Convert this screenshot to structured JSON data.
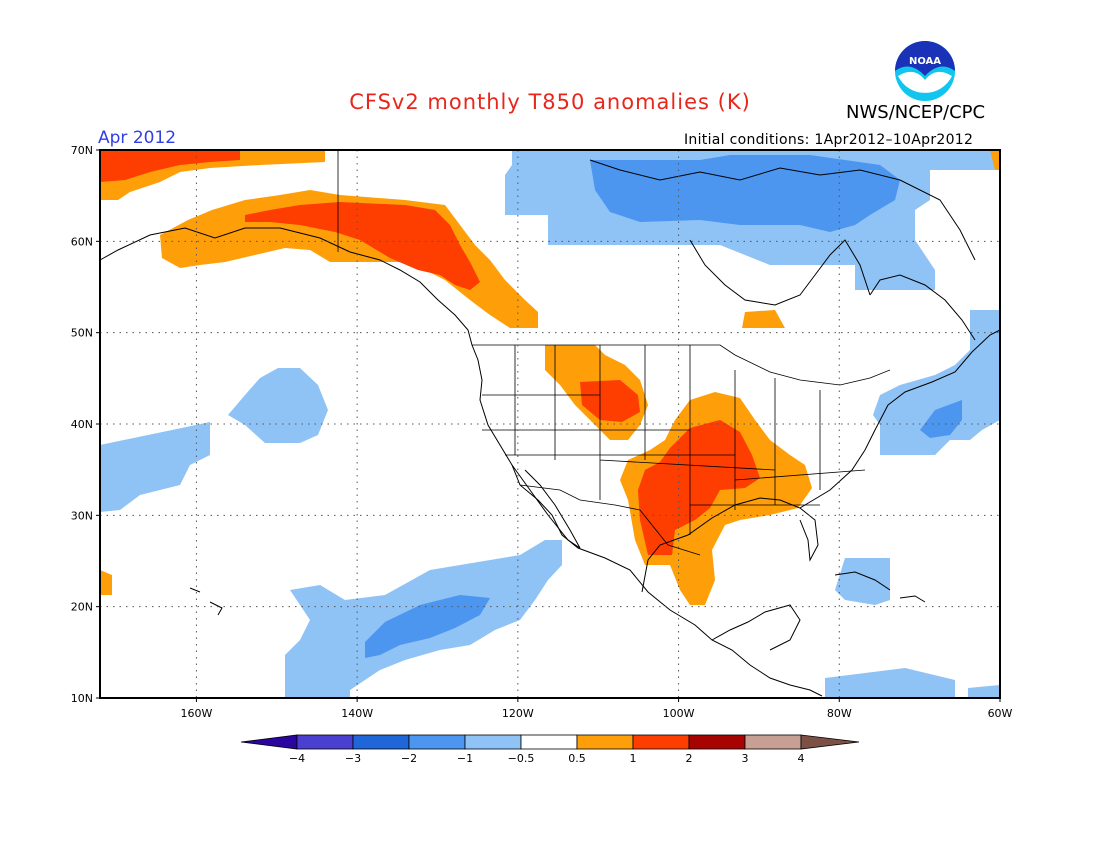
{
  "header": {
    "title": "CFSv2 monthly T850 anomalies (K)",
    "credit": "NWS/NCEP/CPC",
    "period": "Apr 2012",
    "initial_conditions": "Initial conditions: 1Apr2012–10Apr2012"
  },
  "logo": {
    "text": "NOAA",
    "icon": "noaa-logo-icon"
  },
  "map": {
    "lon_range": [
      -172,
      -60
    ],
    "lat_range": [
      10,
      70
    ],
    "grid": true,
    "lat_ticks": [
      {
        "value": 70,
        "label": "70N"
      },
      {
        "value": 60,
        "label": "60N"
      },
      {
        "value": 50,
        "label": "50N"
      },
      {
        "value": 40,
        "label": "40N"
      },
      {
        "value": 30,
        "label": "30N"
      },
      {
        "value": 20,
        "label": "20N"
      },
      {
        "value": 10,
        "label": "10N"
      }
    ],
    "lon_ticks": [
      {
        "value": -160,
        "label": "160W"
      },
      {
        "value": -140,
        "label": "140W"
      },
      {
        "value": -120,
        "label": "120W"
      },
      {
        "value": -100,
        "label": "100W"
      },
      {
        "value": -80,
        "label": "80W"
      },
      {
        "value": -60,
        "label": "60W"
      }
    ]
  },
  "colorbar": {
    "labels": [
      "−4",
      "−3",
      "−2",
      "−1",
      "−0.5",
      "0.5",
      "1",
      "2",
      "3",
      "4"
    ],
    "colors": [
      "#2a05a0",
      "#4a3fcf",
      "#2066d8",
      "#4c96f0",
      "#8fc2f5",
      "#ffffff",
      "#fe9e08",
      "#fe3d01",
      "#a80303",
      "#c8a093",
      "#7d5046"
    ]
  },
  "colors": {
    "title": "#e8261c",
    "period": "#2f3ee6",
    "anomaly_light_blue": "#8fc2f5",
    "anomaly_blue": "#4c96f0",
    "anomaly_orange": "#fe9e08",
    "anomaly_red": "#fe3d01"
  }
}
